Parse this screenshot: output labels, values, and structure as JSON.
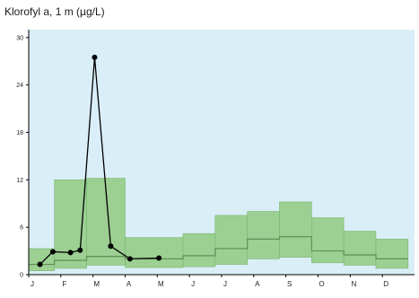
{
  "chart_data": {
    "type": "line",
    "title": "Klorofyl a, 1 m (µg/L)",
    "xlabel": "",
    "ylabel": "",
    "categories": [
      "J",
      "F",
      "M",
      "A",
      "M",
      "J",
      "J",
      "A",
      "S",
      "O",
      "N",
      "D"
    ],
    "ylim": [
      0,
      31
    ],
    "yticks": [
      0,
      6,
      12,
      18,
      24,
      30
    ],
    "grid": false,
    "legend": "none",
    "range_band": {
      "name": "",
      "x_start": [
        0.0,
        0.8,
        1.8,
        3.0,
        4.8,
        5.8,
        6.8,
        7.8,
        8.8,
        9.8,
        10.8
      ],
      "x_end": [
        0.8,
        1.8,
        3.0,
        4.8,
        5.8,
        6.8,
        7.8,
        8.8,
        9.8,
        10.8,
        11.8
      ],
      "low": [
        0.5,
        0.8,
        1.2,
        0.9,
        1.0,
        1.3,
        2.0,
        2.2,
        1.5,
        1.2,
        0.8
      ],
      "high": [
        3.3,
        12.0,
        12.2,
        4.7,
        5.2,
        7.5,
        8.0,
        9.2,
        7.2,
        5.5,
        4.5
      ],
      "median": [
        1.3,
        1.8,
        2.3,
        2.0,
        2.4,
        3.3,
        4.5,
        4.8,
        3.0,
        2.5,
        2.0
      ]
    },
    "series": [
      {
        "name": "",
        "x": [
          0.35,
          0.75,
          1.3,
          1.6,
          2.05,
          2.55,
          3.15,
          4.05
        ],
        "y": [
          1.3,
          2.9,
          2.8,
          3.1,
          27.5,
          3.6,
          2.0,
          2.1
        ]
      }
    ],
    "colors": {
      "plot_bg": "#daeef7",
      "band": "#9ccf92",
      "band_edge": "#7ab770",
      "median_line": "#5f8e56",
      "series_line": "#000000",
      "axis": "#000000"
    }
  }
}
